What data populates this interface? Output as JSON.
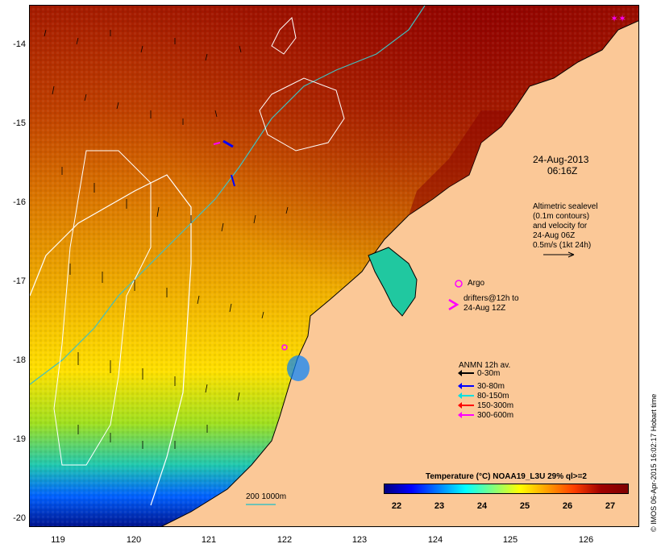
{
  "map": {
    "title_date": "24-Aug-2013",
    "title_time": "06:16Z",
    "lat_labels": [
      "-14",
      "-15",
      "-16",
      "-17",
      "-18",
      "-19",
      "-20"
    ],
    "lon_labels": [
      "119",
      "120",
      "121",
      "122",
      "123",
      "124",
      "125",
      "126"
    ],
    "sealevel_note": [
      "Altimetric sealevel",
      "(0.1m contours)",
      "and velocity for",
      "24-Aug 06Z",
      "0.5m/s (1kt 24h)"
    ],
    "argo_label": "Argo",
    "drifters_label": [
      "drifters@12h to",
      "24-Aug 12Z"
    ],
    "isobath_label": "200  1000m",
    "credit": "© IMOS 06-Apr-2015 16:02:17 Hobart time"
  },
  "anmn_legend": {
    "title": "ANMN 12h av.",
    "items": [
      {
        "label": "0-30m",
        "color": "#000000"
      },
      {
        "label": "30-80m",
        "color": "#0000ff"
      },
      {
        "label": "80-150m",
        "color": "#00e0e0"
      },
      {
        "label": "150-300m",
        "color": "#ff0000"
      },
      {
        "label": "300-600m",
        "color": "#ff00ff"
      }
    ]
  },
  "colorbar": {
    "title": "Temperature (°C) NOAA19_L3U 29% ql>=2",
    "ticks": [
      "22",
      "23",
      "24",
      "25",
      "26",
      "27"
    ],
    "colors": [
      "#00007f",
      "#0000ff",
      "#007fff",
      "#00ffff",
      "#7fff7f",
      "#ffff00",
      "#ff9f00",
      "#ff3f00",
      "#a00000",
      "#7f0000"
    ]
  },
  "colors": {
    "land": "#fbc897",
    "sst_warm": "#a51a00",
    "sst_mid": "#e08a00",
    "sst_cool": "#ffe000",
    "sst_green": "#9be000",
    "sst_cyan": "#00d0c0",
    "sst_blue": "#0040ff",
    "isobath_200": "#40c0c0",
    "isobath_1000": "#ffffff"
  }
}
